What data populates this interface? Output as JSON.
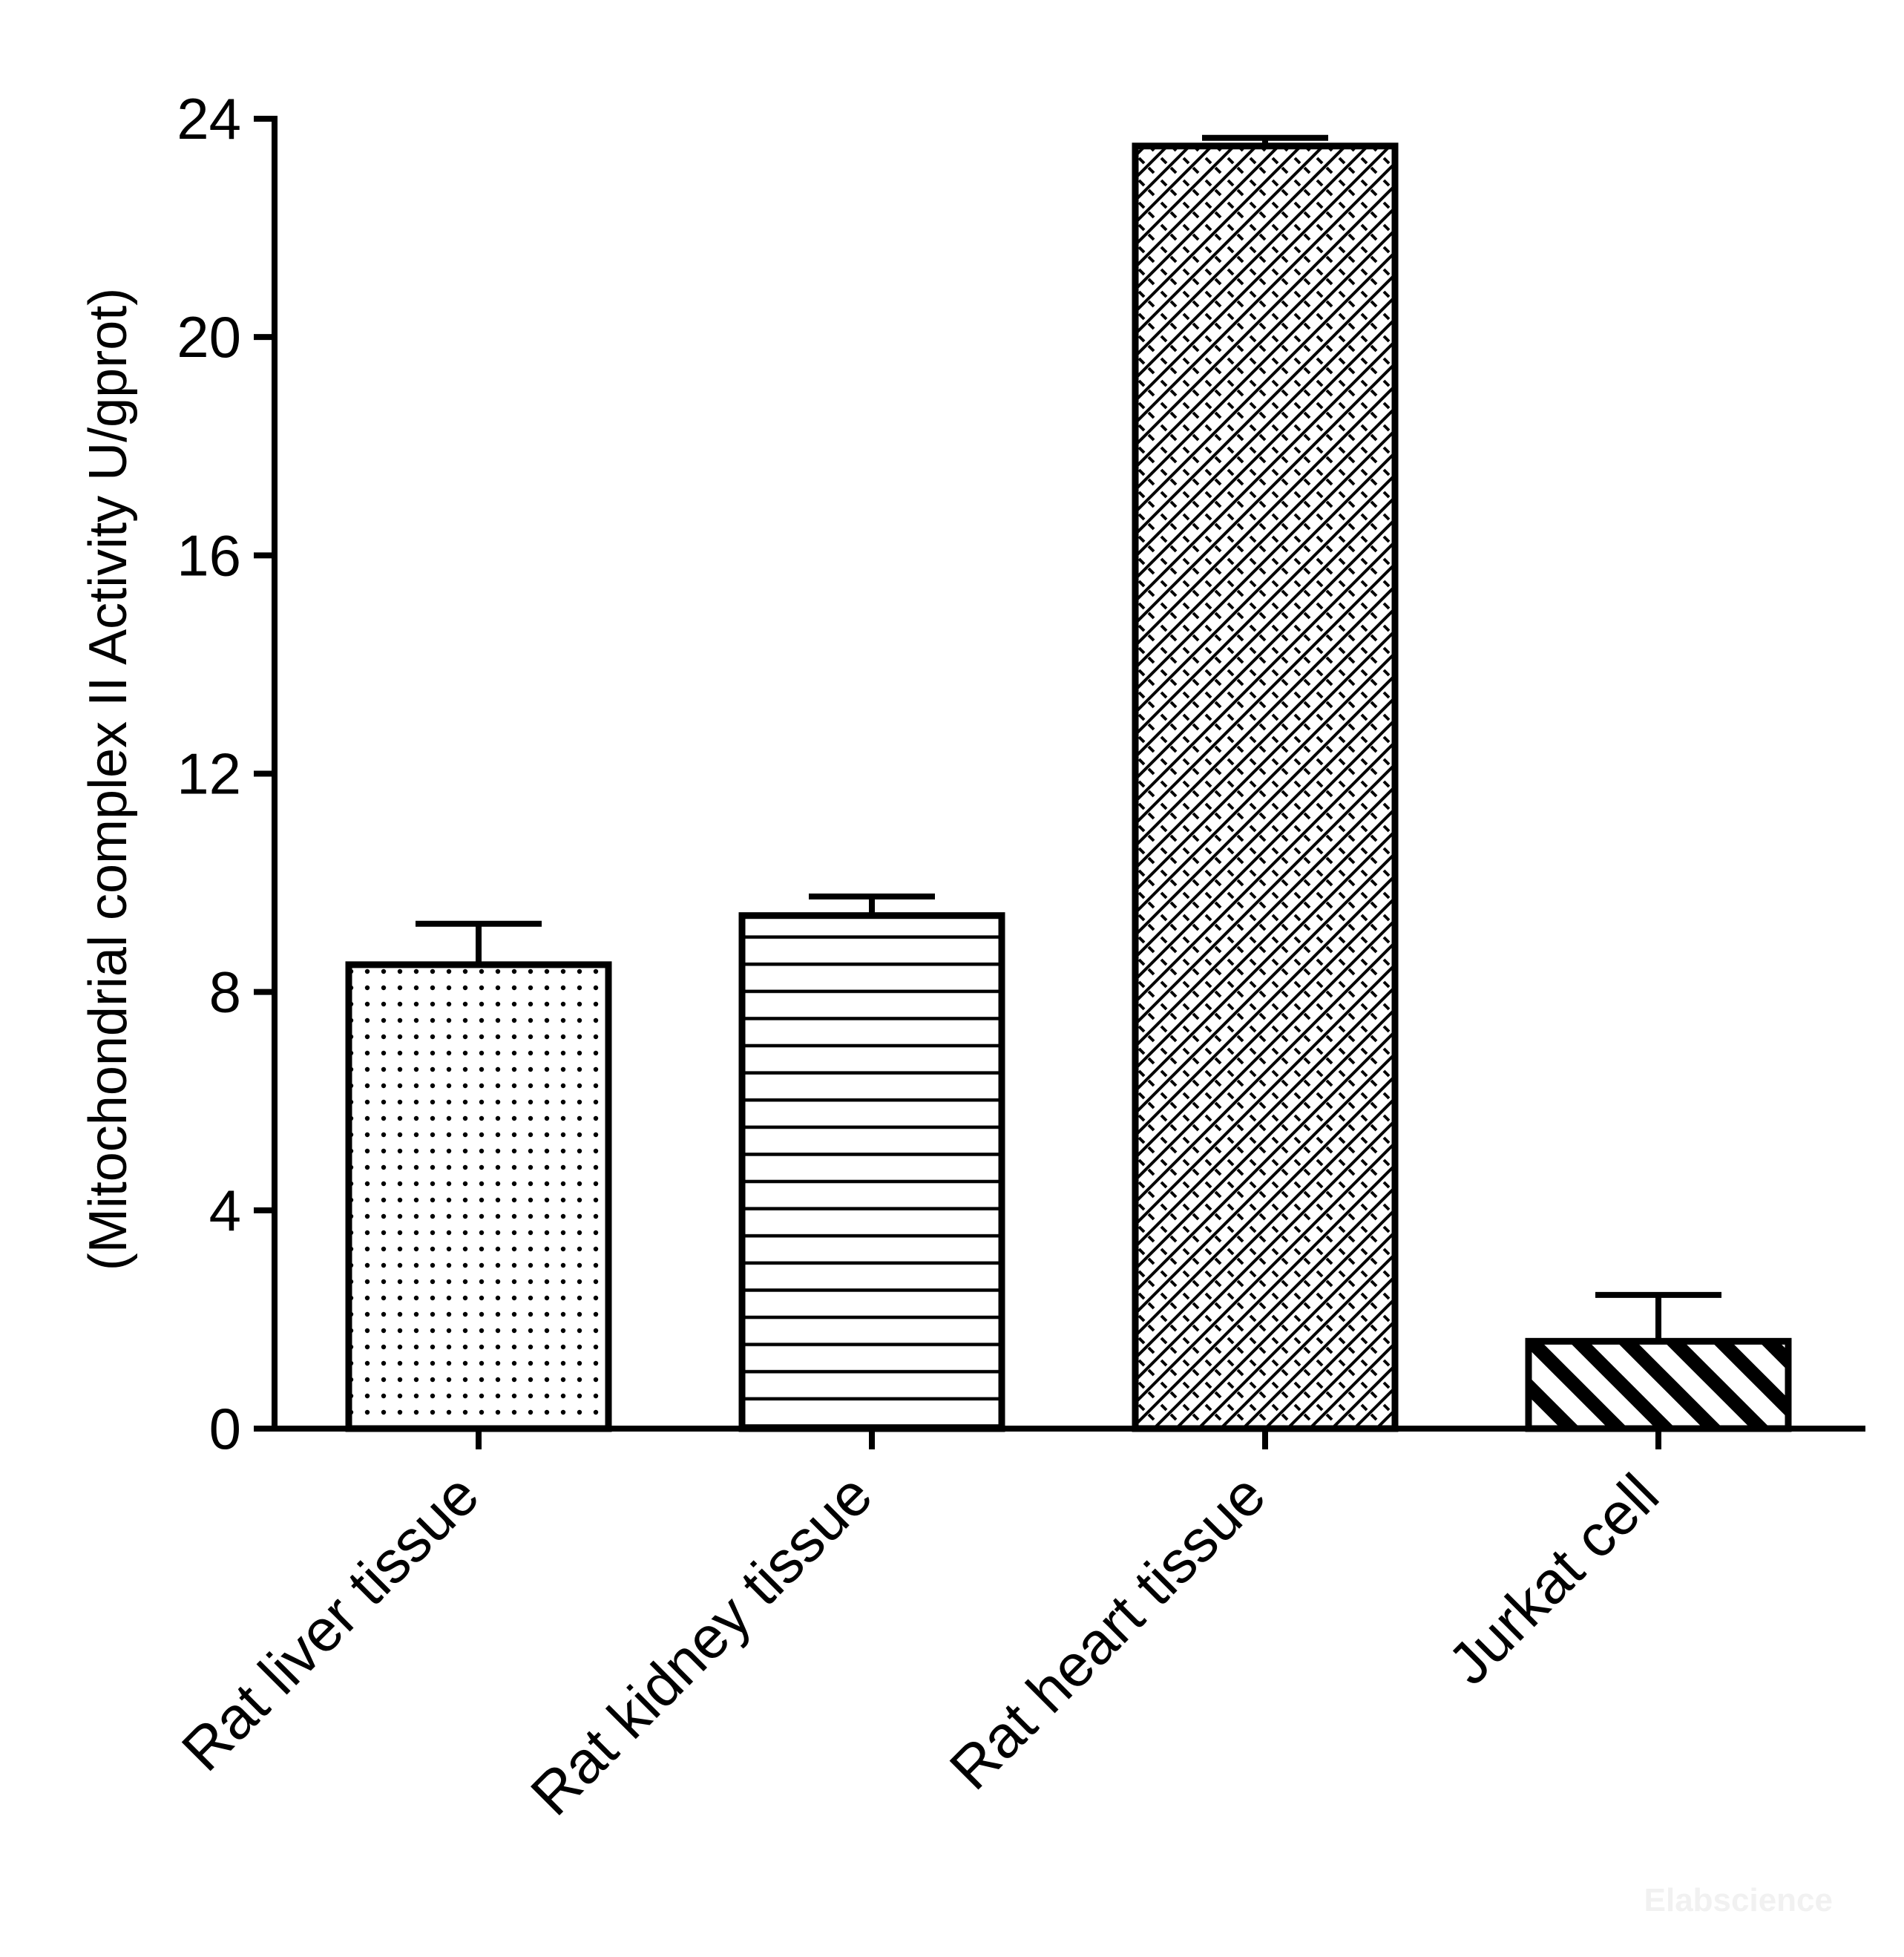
{
  "chart_data": {
    "type": "bar",
    "title": "",
    "xlabel": "",
    "ylabel": "(Mitochondrial  complex II Activity U/gprot)",
    "ylim": [
      0,
      24
    ],
    "yticks": [
      0,
      4,
      8,
      12,
      16,
      20,
      24
    ],
    "grid": false,
    "legend": "none",
    "categories": [
      "Rat liver tissue",
      "Rat kidney tissue",
      "Rat heart tissue",
      "Jurkat cell"
    ],
    "series": [
      {
        "values": [
          8.5,
          9.4,
          23.5,
          1.6
        ],
        "error": [
          0.75,
          0.35,
          0.15,
          0.85
        ],
        "patterns": [
          "dots",
          "horizontal-lines",
          "crosshatch",
          "diagonal-stripes"
        ]
      }
    ],
    "colors": {
      "bar_fill": "#ffffff",
      "stroke": "#000000"
    }
  },
  "watermark": "Elabscience"
}
